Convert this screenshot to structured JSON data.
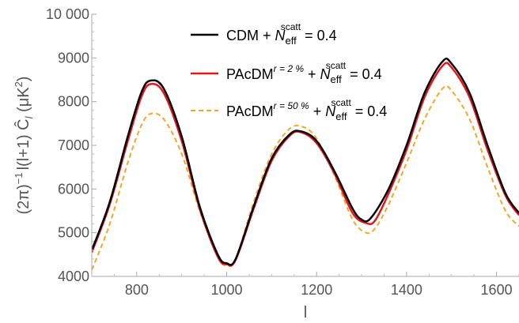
{
  "chart_data": {
    "type": "line",
    "xlabel": "l",
    "ylabel": "(2π)⁻¹ l(l+1) Ĉ_l (μK²)",
    "ylabel_parts": {
      "main": "(2π)",
      "exp": "−1",
      "rest": "l(l+1) Ĉ",
      "sub": "l",
      "unit": " (μK",
      "unit_exp": "2",
      "close": ")"
    },
    "xlim": [
      700,
      1650
    ],
    "ylim": [
      4000,
      10000
    ],
    "xticks": [
      800,
      1000,
      1200,
      1400,
      1600
    ],
    "yticks": [
      4000,
      5000,
      6000,
      7000,
      8000,
      9000,
      10000
    ],
    "ytick_labels": [
      "4000",
      "5000",
      "6000",
      "7000",
      "8000",
      "9000",
      "10 000"
    ],
    "grid": false,
    "legend_position": "top-center",
    "series": [
      {
        "name": "CDM + N_eff^scatt = 0.4",
        "label_parts": {
          "pre": "CDM + ",
          "base": "N",
          "sub": "eff",
          "sup": "scatt",
          "post": " = 0.4"
        },
        "color": "#000000",
        "dash": "solid",
        "points": [
          [
            700,
            4600
          ],
          [
            740,
            5700
          ],
          [
            780,
            7200
          ],
          [
            810,
            8200
          ],
          [
            830,
            8480
          ],
          [
            860,
            8300
          ],
          [
            900,
            7200
          ],
          [
            940,
            5600
          ],
          [
            980,
            4500
          ],
          [
            1000,
            4300
          ],
          [
            1020,
            4400
          ],
          [
            1060,
            5600
          ],
          [
            1100,
            6700
          ],
          [
            1140,
            7250
          ],
          [
            1165,
            7320
          ],
          [
            1200,
            7100
          ],
          [
            1240,
            6400
          ],
          [
            1280,
            5550
          ],
          [
            1300,
            5300
          ],
          [
            1320,
            5330
          ],
          [
            1360,
            6000
          ],
          [
            1400,
            7000
          ],
          [
            1440,
            8200
          ],
          [
            1480,
            8920
          ],
          [
            1500,
            8870
          ],
          [
            1540,
            8200
          ],
          [
            1580,
            7000
          ],
          [
            1620,
            5900
          ],
          [
            1650,
            5450
          ]
        ]
      },
      {
        "name": "PAcDM^(r=2 %) + N_eff^scatt = 0.4",
        "label_parts": {
          "pre": "PAcDM",
          "sup1": "r = 2 %",
          "mid": " + ",
          "base": "N",
          "sub": "eff",
          "sup": "scatt",
          "post": " = 0.4"
        },
        "color": "#e8141c",
        "dash": "solid",
        "points": [
          [
            700,
            4550
          ],
          [
            740,
            5650
          ],
          [
            780,
            7100
          ],
          [
            810,
            8100
          ],
          [
            830,
            8400
          ],
          [
            860,
            8200
          ],
          [
            900,
            7100
          ],
          [
            940,
            5550
          ],
          [
            980,
            4450
          ],
          [
            1000,
            4280
          ],
          [
            1020,
            4380
          ],
          [
            1060,
            5550
          ],
          [
            1100,
            6650
          ],
          [
            1140,
            7220
          ],
          [
            1165,
            7300
          ],
          [
            1200,
            7050
          ],
          [
            1240,
            6350
          ],
          [
            1280,
            5450
          ],
          [
            1310,
            5220
          ],
          [
            1330,
            5280
          ],
          [
            1360,
            5900
          ],
          [
            1400,
            6900
          ],
          [
            1440,
            8100
          ],
          [
            1480,
            8820
          ],
          [
            1500,
            8780
          ],
          [
            1540,
            8100
          ],
          [
            1580,
            6900
          ],
          [
            1620,
            5850
          ],
          [
            1650,
            5400
          ]
        ]
      },
      {
        "name": "PAcDM^(r=50 %) + N_eff^scatt = 0.4",
        "label_parts": {
          "pre": "PAcDM",
          "sup1": "r = 50 %",
          "mid": " + ",
          "base": "N",
          "sub": "eff",
          "sup": "scatt",
          "post": " = 0.4"
        },
        "color": "#f5a623",
        "dash": "dashed",
        "points": [
          [
            700,
            4150
          ],
          [
            740,
            5200
          ],
          [
            780,
            6600
          ],
          [
            810,
            7450
          ],
          [
            830,
            7720
          ],
          [
            860,
            7600
          ],
          [
            900,
            6800
          ],
          [
            940,
            5500
          ],
          [
            980,
            4450
          ],
          [
            1000,
            4250
          ],
          [
            1020,
            4400
          ],
          [
            1060,
            5700
          ],
          [
            1100,
            6800
          ],
          [
            1140,
            7380
          ],
          [
            1170,
            7420
          ],
          [
            1200,
            7150
          ],
          [
            1240,
            6300
          ],
          [
            1280,
            5300
          ],
          [
            1310,
            5000
          ],
          [
            1330,
            5100
          ],
          [
            1360,
            5650
          ],
          [
            1400,
            6600
          ],
          [
            1440,
            7600
          ],
          [
            1480,
            8300
          ],
          [
            1500,
            8250
          ],
          [
            1540,
            7600
          ],
          [
            1580,
            6500
          ],
          [
            1620,
            5500
          ],
          [
            1650,
            5150
          ]
        ]
      }
    ]
  }
}
